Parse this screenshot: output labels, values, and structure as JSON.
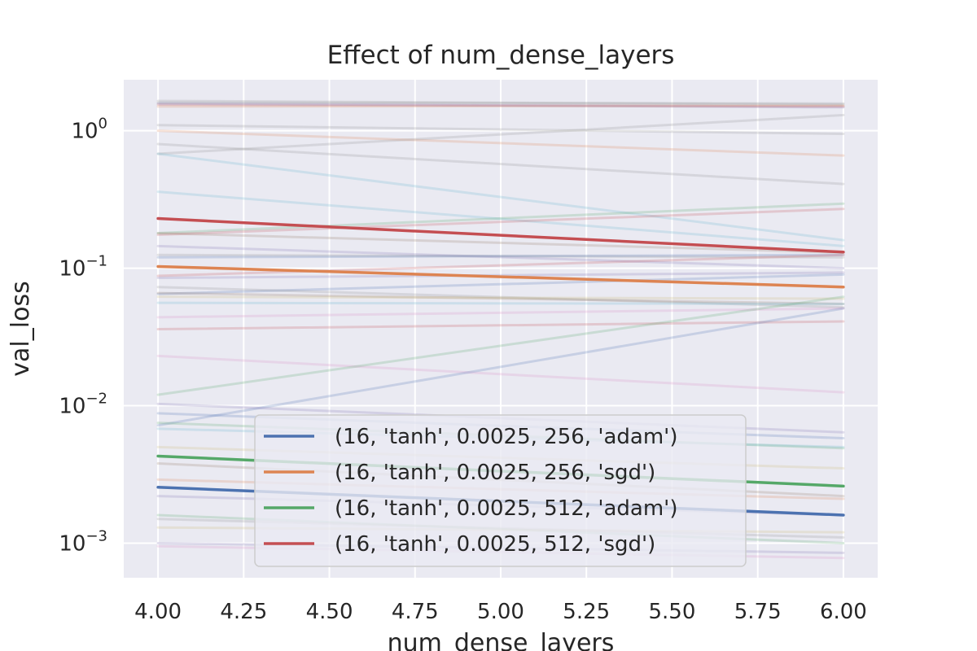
{
  "chart_data": {
    "type": "line",
    "title": "Effect of num_dense_layers",
    "xlabel": "num_dense_layers",
    "ylabel": "val_loss",
    "yscale": "log",
    "xlim": [
      3.9,
      6.1
    ],
    "ylim": [
      0.00056,
      2.35
    ],
    "grid": true,
    "legend_location": "lower center",
    "x_ticks": [
      "4.00",
      "4.25",
      "4.50",
      "4.75",
      "5.00",
      "5.25",
      "5.50",
      "5.75",
      "6.00"
    ],
    "y_ticks": [
      {
        "base": "10",
        "exp": "0"
      },
      {
        "base": "10",
        "exp": "−1"
      },
      {
        "base": "10",
        "exp": "−2"
      },
      {
        "base": "10",
        "exp": "−3"
      }
    ],
    "x": [
      4,
      6
    ],
    "series": [
      {
        "name": "(16, 'tanh', 0.0025, 256, 'adam')",
        "color": "#4c72b0",
        "values": [
          0.00255,
          0.0016
        ]
      },
      {
        "name": "(16, 'tanh', 0.0025, 256, 'sgd')",
        "color": "#dd8452",
        "values": [
          0.103,
          0.073
        ]
      },
      {
        "name": "(16, 'tanh', 0.0025, 512, 'adam')",
        "color": "#55a868",
        "values": [
          0.0043,
          0.0026
        ]
      },
      {
        "name": "(16, 'tanh', 0.0025, 512, 'sgd')",
        "color": "#c44e52",
        "values": [
          0.23,
          0.131
        ]
      }
    ],
    "background_series": [
      {
        "color": "#8c8c8c",
        "values": [
          1.65,
          1.55
        ]
      },
      {
        "color": "#c44e52",
        "values": [
          1.55,
          1.5
        ]
      },
      {
        "color": "#dd8452",
        "values": [
          1.5,
          1.52
        ]
      },
      {
        "color": "#8c8c8c",
        "values": [
          1.6,
          1.58
        ]
      },
      {
        "color": "#8172b3",
        "values": [
          1.58,
          1.48
        ]
      },
      {
        "color": "#8c8c8c",
        "values": [
          1.1,
          0.95
        ]
      },
      {
        "color": "#dd8452",
        "values": [
          1.0,
          0.66
        ]
      },
      {
        "color": "#8c8c8c",
        "values": [
          0.8,
          0.41
        ]
      },
      {
        "color": "#8c8c8c",
        "values": [
          0.68,
          1.3
        ]
      },
      {
        "color": "#64b5cd",
        "values": [
          0.68,
          0.16
        ]
      },
      {
        "color": "#64b5cd",
        "values": [
          0.36,
          0.145
        ]
      },
      {
        "color": "#55a868",
        "values": [
          0.18,
          0.295
        ]
      },
      {
        "color": "#c44e52",
        "values": [
          0.175,
          0.27
        ]
      },
      {
        "color": "#937860",
        "values": [
          0.18,
          0.13
        ]
      },
      {
        "color": "#8172b3",
        "values": [
          0.145,
          0.1
        ]
      },
      {
        "color": "#8c8c8c",
        "values": [
          0.125,
          0.12
        ]
      },
      {
        "color": "#4c72b0",
        "values": [
          0.12,
          0.125
        ]
      },
      {
        "color": "#c44e52",
        "values": [
          0.088,
          0.125
        ]
      },
      {
        "color": "#8172b3",
        "values": [
          0.085,
          0.093
        ]
      },
      {
        "color": "#4c72b0",
        "values": [
          0.065,
          0.09
        ]
      },
      {
        "color": "#8c8c8c",
        "values": [
          0.073,
          0.052
        ]
      },
      {
        "color": "#937860",
        "values": [
          0.066,
          0.055
        ]
      },
      {
        "color": "#ccb974",
        "values": [
          0.062,
          0.06
        ]
      },
      {
        "color": "#64b5cd",
        "values": [
          0.056,
          0.055
        ]
      },
      {
        "color": "#da8bc3",
        "values": [
          0.044,
          0.051
        ]
      },
      {
        "color": "#c44e52",
        "values": [
          0.036,
          0.041
        ]
      },
      {
        "color": "#da8bc3",
        "values": [
          0.023,
          0.0125
        ]
      },
      {
        "color": "#55a868",
        "values": [
          0.012,
          0.062
        ]
      },
      {
        "color": "#4c72b0",
        "values": [
          0.0072,
          0.051
        ]
      },
      {
        "color": "#8172b3",
        "values": [
          0.0103,
          0.0064
        ]
      },
      {
        "color": "#4c72b0",
        "values": [
          0.0088,
          0.0058
        ]
      },
      {
        "color": "#55a868",
        "values": [
          0.0075,
          0.0049
        ]
      },
      {
        "color": "#64b5cd",
        "values": [
          0.0068,
          0.005
        ]
      },
      {
        "color": "#ccb974",
        "values": [
          0.005,
          0.0035
        ]
      },
      {
        "color": "#937860",
        "values": [
          0.0038,
          0.0022
        ]
      },
      {
        "color": "#dd8452",
        "values": [
          0.0029,
          0.0021
        ]
      },
      {
        "color": "#8172b3",
        "values": [
          0.0022,
          0.0016
        ]
      },
      {
        "color": "#55a868",
        "values": [
          0.0016,
          0.001
        ]
      },
      {
        "color": "#ccb974",
        "values": [
          0.0013,
          0.0012
        ]
      },
      {
        "color": "#8172b3",
        "values": [
          0.001,
          0.00085
        ]
      },
      {
        "color": "#da8bc3",
        "values": [
          0.00095,
          0.00078
        ]
      },
      {
        "color": "#8c8c8c",
        "values": [
          0.0015,
          0.0011
        ]
      }
    ]
  }
}
